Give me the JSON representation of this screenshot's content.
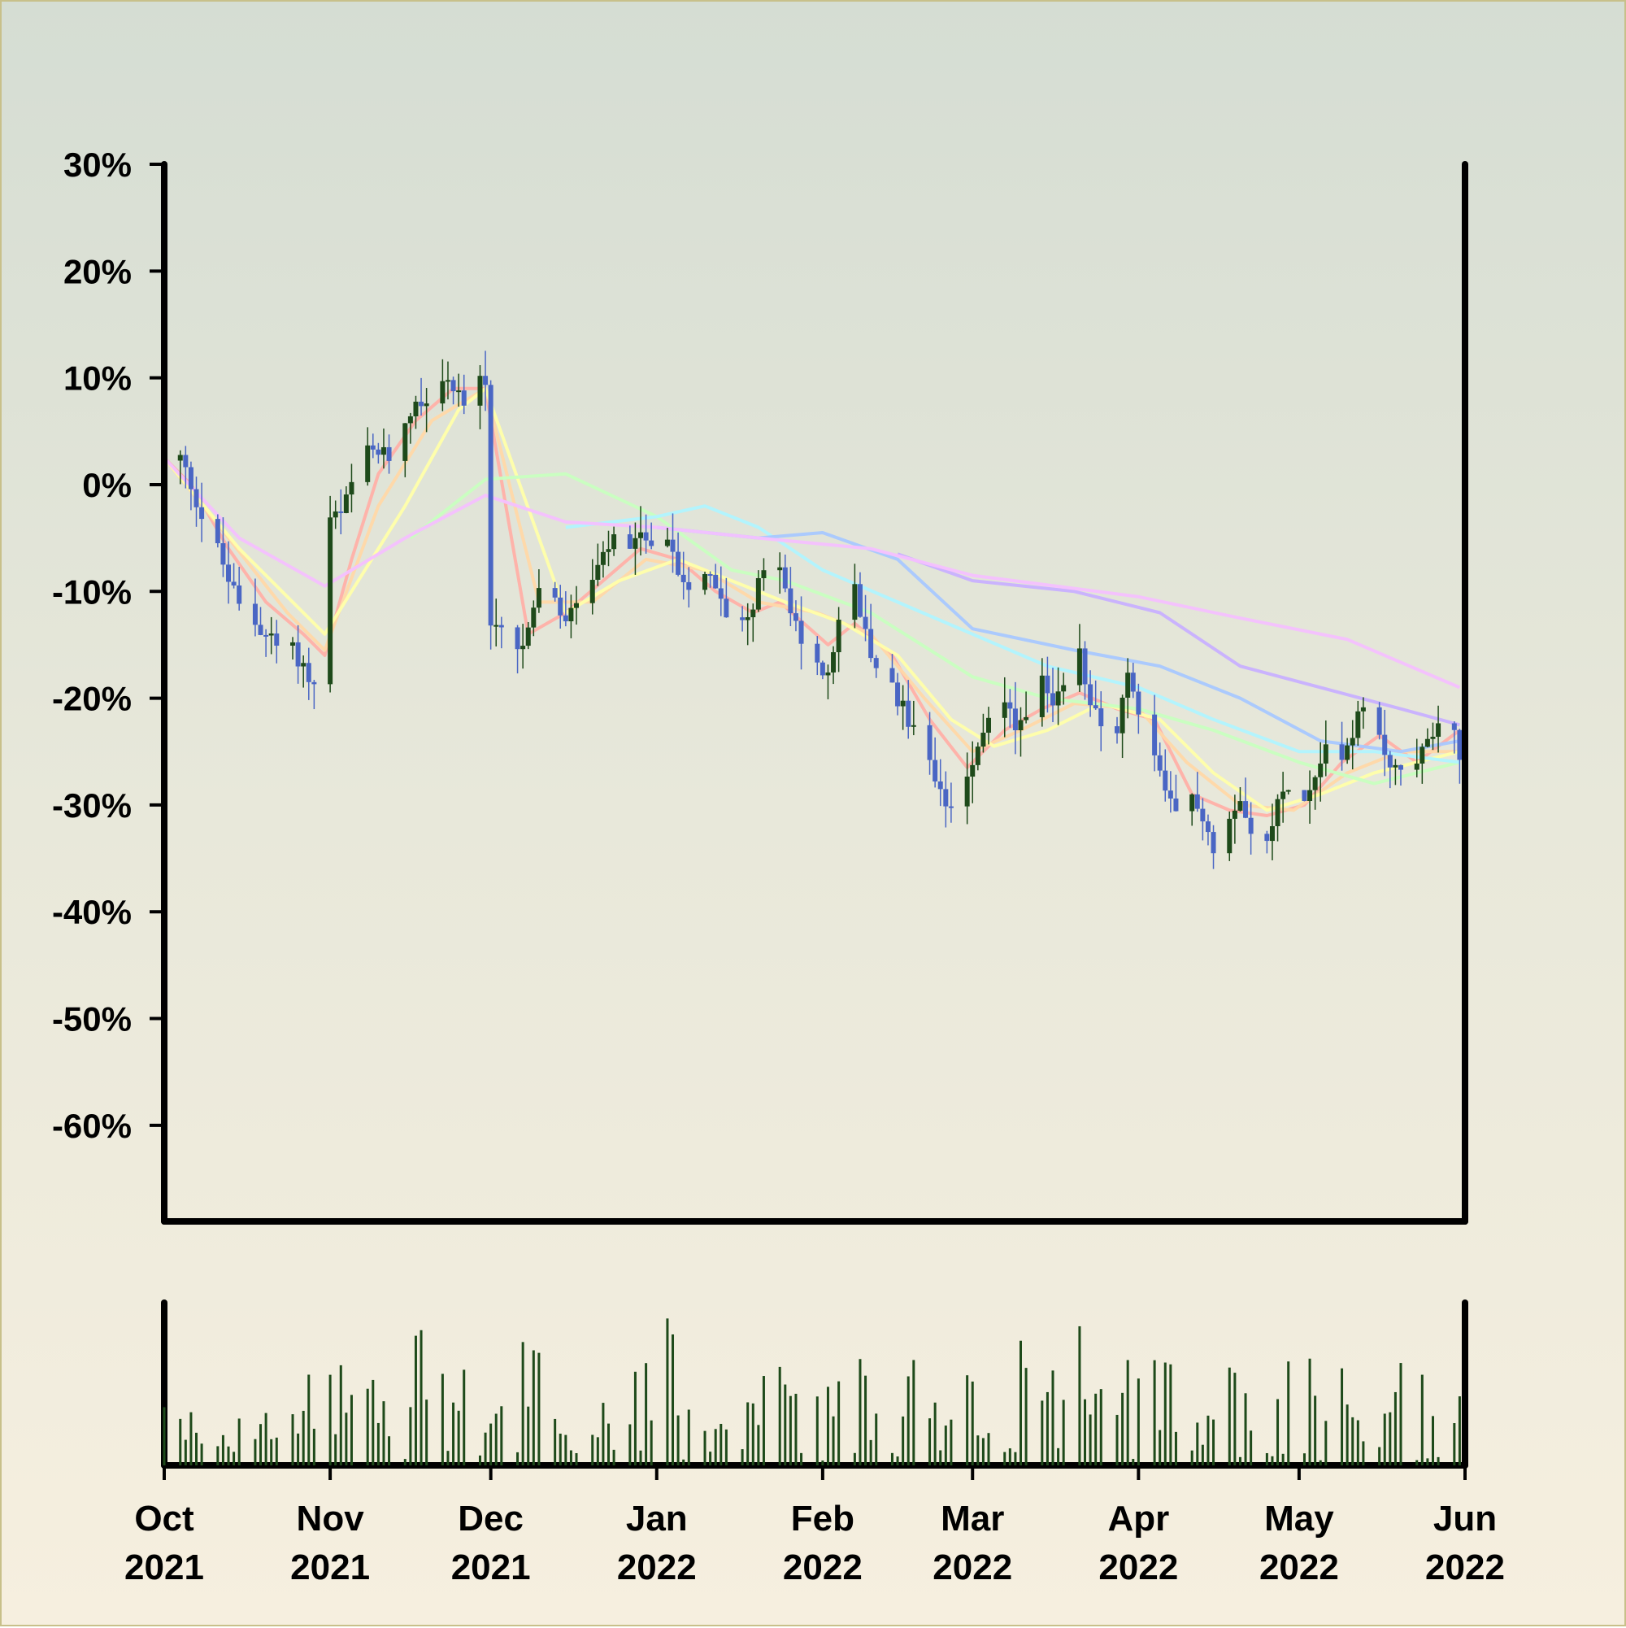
{
  "colors": {
    "up": "#1e4a1a",
    "down": "#4a66c4",
    "volume": "#1e4a1a",
    "axis": "#000000"
  },
  "chart_data": {
    "type": "candlestick",
    "title": "",
    "xlabel": "",
    "ylabel": "",
    "grid": false,
    "legend": "none",
    "y_range": [
      -69,
      30
    ],
    "y_ticks": [
      30,
      20,
      10,
      0,
      -10,
      -20,
      -30,
      -40,
      -50,
      -60
    ],
    "y_tick_labels": [
      "30%",
      "20%",
      "10%",
      "0%",
      "-10%",
      "-20%",
      "-30%",
      "-40%",
      "-50%",
      "-60%"
    ],
    "x_range": [
      "2021-10-01",
      "2022-06-01"
    ],
    "x_ticks": [
      {
        "date": "2021-10-01",
        "label": [
          "Oct",
          "2021"
        ]
      },
      {
        "date": "2021-11-01",
        "label": [
          "Nov",
          "2021"
        ]
      },
      {
        "date": "2021-12-01",
        "label": [
          "Dec",
          "2021"
        ]
      },
      {
        "date": "2022-01-01",
        "label": [
          "Jan",
          "2022"
        ]
      },
      {
        "date": "2022-02-01",
        "label": [
          "Feb",
          "2022"
        ]
      },
      {
        "date": "2022-03-01",
        "label": [
          "Mar",
          "2022"
        ]
      },
      {
        "date": "2022-04-01",
        "label": [
          "Apr",
          "2022"
        ]
      },
      {
        "date": "2022-05-01",
        "label": [
          "May",
          "2022"
        ]
      },
      {
        "date": "2022-06-01",
        "label": [
          "Jun",
          "2022"
        ]
      }
    ],
    "close_path": [
      [
        "2021-10-01",
        2
      ],
      [
        "2021-10-04",
        2.5
      ],
      [
        "2021-10-06",
        0
      ],
      [
        "2021-10-08",
        -3
      ],
      [
        "2021-10-11",
        -6
      ],
      [
        "2021-10-13",
        -9
      ],
      [
        "2021-10-15",
        -11
      ],
      [
        "2021-10-18",
        -13
      ],
      [
        "2021-10-20",
        -14
      ],
      [
        "2021-10-22",
        -15
      ],
      [
        "2021-10-25",
        -15.5
      ],
      [
        "2021-10-27",
        -17
      ],
      [
        "2021-10-29",
        -19
      ],
      [
        "2021-10-31",
        -18
      ],
      [
        "2021-11-01",
        -3
      ],
      [
        "2021-11-03",
        -3
      ],
      [
        "2021-11-05",
        0
      ],
      [
        "2021-11-08",
        3
      ],
      [
        "2021-11-10",
        3
      ],
      [
        "2021-11-12",
        2.5
      ],
      [
        "2021-11-15",
        6
      ],
      [
        "2021-11-17",
        8
      ],
      [
        "2021-11-19",
        8
      ],
      [
        "2021-11-22",
        10
      ],
      [
        "2021-11-24",
        9.5
      ],
      [
        "2021-11-26",
        7.5
      ],
      [
        "2021-11-29",
        10
      ],
      [
        "2021-11-30",
        9.5
      ],
      [
        "2021-12-01",
        -13
      ],
      [
        "2021-12-03",
        -14
      ],
      [
        "2021-12-06",
        -15.5
      ],
      [
        "2021-12-08",
        -14
      ],
      [
        "2021-12-10",
        -10
      ],
      [
        "2021-12-13",
        -11
      ],
      [
        "2021-12-15",
        -13
      ],
      [
        "2021-12-17",
        -11
      ],
      [
        "2021-12-20",
        -9
      ],
      [
        "2021-12-22",
        -7
      ],
      [
        "2021-12-24",
        -5
      ],
      [
        "2021-12-27",
        -6
      ],
      [
        "2021-12-29",
        -5
      ],
      [
        "2022-01-03",
        -5
      ],
      [
        "2022-01-05",
        -8
      ],
      [
        "2022-01-07",
        -10
      ],
      [
        "2022-01-10",
        -8
      ],
      [
        "2022-01-12",
        -10
      ],
      [
        "2022-01-14",
        -12
      ],
      [
        "2022-01-17",
        -12.5
      ],
      [
        "2022-01-19",
        -11
      ],
      [
        "2022-01-21",
        -8
      ],
      [
        "2022-01-24",
        -7
      ],
      [
        "2022-01-26",
        -12
      ],
      [
        "2022-01-28",
        -15
      ],
      [
        "2022-01-31",
        -17
      ],
      [
        "2022-02-02",
        -18
      ],
      [
        "2022-02-04",
        -13
      ],
      [
        "2022-02-07",
        -10
      ],
      [
        "2022-02-09",
        -14
      ],
      [
        "2022-02-11",
        -17
      ],
      [
        "2022-02-14",
        -19
      ],
      [
        "2022-02-16",
        -21
      ],
      [
        "2022-02-18",
        -23
      ],
      [
        "2022-02-21",
        -26
      ],
      [
        "2022-02-23",
        -29
      ],
      [
        "2022-02-25",
        -30
      ],
      [
        "2022-02-28",
        -27
      ],
      [
        "2022-03-02",
        -24
      ],
      [
        "2022-03-04",
        -22
      ],
      [
        "2022-03-07",
        -20
      ],
      [
        "2022-03-09",
        -23
      ],
      [
        "2022-03-11",
        -21
      ],
      [
        "2022-03-14",
        -18.5
      ],
      [
        "2022-03-16",
        -21
      ],
      [
        "2022-03-18",
        -19
      ],
      [
        "2022-03-21",
        -16
      ],
      [
        "2022-03-23",
        -20
      ],
      [
        "2022-03-25",
        -22
      ],
      [
        "2022-03-28",
        -23
      ],
      [
        "2022-03-30",
        -18
      ],
      [
        "2022-04-01",
        -22
      ],
      [
        "2022-04-04",
        -25
      ],
      [
        "2022-04-06",
        -29
      ],
      [
        "2022-04-08",
        -31
      ],
      [
        "2022-04-11",
        -29
      ],
      [
        "2022-04-13",
        -31
      ],
      [
        "2022-04-15",
        -34
      ],
      [
        "2022-04-18",
        -31
      ],
      [
        "2022-04-20",
        -29
      ],
      [
        "2022-04-22",
        -32
      ],
      [
        "2022-04-25",
        -34
      ],
      [
        "2022-04-27",
        -30
      ],
      [
        "2022-04-29",
        -28
      ],
      [
        "2022-05-02",
        -30
      ],
      [
        "2022-05-04",
        -27
      ],
      [
        "2022-05-06",
        -24
      ],
      [
        "2022-05-09",
        -26
      ],
      [
        "2022-05-11",
        -23
      ],
      [
        "2022-05-13",
        -21
      ],
      [
        "2022-05-16",
        -24
      ],
      [
        "2022-05-18",
        -26
      ],
      [
        "2022-05-20",
        -27
      ],
      [
        "2022-05-23",
        -26
      ],
      [
        "2022-05-25",
        -24
      ],
      [
        "2022-05-27",
        -22
      ],
      [
        "2022-05-30",
        -23
      ],
      [
        "2022-05-31",
        -25
      ]
    ],
    "moving_averages": [
      {
        "color": "#ffb0a8",
        "values": [
          [
            "2021-10-01",
            2.5
          ],
          [
            "2021-10-06",
            0
          ],
          [
            "2021-10-13",
            -6
          ],
          [
            "2021-10-20",
            -11
          ],
          [
            "2021-10-27",
            -14
          ],
          [
            "2021-10-31",
            -16
          ],
          [
            "2021-11-05",
            -7
          ],
          [
            "2021-11-10",
            1
          ],
          [
            "2021-11-17",
            6
          ],
          [
            "2021-11-24",
            9
          ],
          [
            "2021-11-30",
            9
          ],
          [
            "2021-12-08",
            -14
          ],
          [
            "2021-12-15",
            -12
          ],
          [
            "2021-12-22",
            -9
          ],
          [
            "2021-12-29",
            -6
          ],
          [
            "2022-01-05",
            -7
          ],
          [
            "2022-01-12",
            -10
          ],
          [
            "2022-01-19",
            -12
          ],
          [
            "2022-01-24",
            -11
          ],
          [
            "2022-02-02",
            -15
          ],
          [
            "2022-02-07",
            -13
          ],
          [
            "2022-02-14",
            -16
          ],
          [
            "2022-02-21",
            -22
          ],
          [
            "2022-02-28",
            -26.5
          ],
          [
            "2022-03-07",
            -23
          ],
          [
            "2022-03-14",
            -21
          ],
          [
            "2022-03-21",
            -19.5
          ],
          [
            "2022-03-28",
            -21
          ],
          [
            "2022-04-04",
            -22
          ],
          [
            "2022-04-11",
            -29
          ],
          [
            "2022-04-18",
            -30.5
          ],
          [
            "2022-04-25",
            -31
          ],
          [
            "2022-05-02",
            -30
          ],
          [
            "2022-05-09",
            -26
          ],
          [
            "2022-05-16",
            -23.5
          ],
          [
            "2022-05-23",
            -26
          ],
          [
            "2022-05-31",
            -23
          ]
        ]
      },
      {
        "color": "#ffd8a8",
        "values": [
          [
            "2021-10-01",
            2.5
          ],
          [
            "2021-10-13",
            -5
          ],
          [
            "2021-10-24",
            -12
          ],
          [
            "2021-10-31",
            -15.5
          ],
          [
            "2021-11-10",
            -2
          ],
          [
            "2021-11-20",
            6
          ],
          [
            "2021-11-30",
            9
          ],
          [
            "2021-12-10",
            -11
          ],
          [
            "2021-12-20",
            -11
          ],
          [
            "2021-12-30",
            -7
          ],
          [
            "2022-01-10",
            -8
          ],
          [
            "2022-01-20",
            -11
          ],
          [
            "2022-01-31",
            -12
          ],
          [
            "2022-02-10",
            -14
          ],
          [
            "2022-02-20",
            -20
          ],
          [
            "2022-03-01",
            -25
          ],
          [
            "2022-03-10",
            -23
          ],
          [
            "2022-03-20",
            -20.5
          ],
          [
            "2022-04-01",
            -21
          ],
          [
            "2022-04-10",
            -26
          ],
          [
            "2022-04-20",
            -30
          ],
          [
            "2022-04-30",
            -30.5
          ],
          [
            "2022-05-10",
            -27
          ],
          [
            "2022-05-20",
            -25
          ],
          [
            "2022-05-31",
            -25
          ]
        ]
      },
      {
        "color": "#ffffaa",
        "values": [
          [
            "2021-10-01",
            2.5
          ],
          [
            "2021-10-15",
            -6
          ],
          [
            "2021-10-31",
            -14
          ],
          [
            "2021-11-15",
            -2
          ],
          [
            "2021-11-25",
            7
          ],
          [
            "2021-11-30",
            9
          ],
          [
            "2021-12-05",
            2
          ],
          [
            "2021-12-15",
            -12
          ],
          [
            "2021-12-25",
            -9
          ],
          [
            "2022-01-05",
            -7
          ],
          [
            "2022-01-15",
            -9
          ],
          [
            "2022-01-25",
            -11
          ],
          [
            "2022-02-05",
            -13
          ],
          [
            "2022-02-15",
            -16
          ],
          [
            "2022-02-25",
            -22
          ],
          [
            "2022-03-05",
            -24.5
          ],
          [
            "2022-03-15",
            -23
          ],
          [
            "2022-03-25",
            -20.5
          ],
          [
            "2022-04-05",
            -22
          ],
          [
            "2022-04-15",
            -27
          ],
          [
            "2022-04-25",
            -30.5
          ],
          [
            "2022-05-05",
            -29
          ],
          [
            "2022-05-15",
            -27
          ],
          [
            "2022-05-31",
            -25
          ]
        ]
      },
      {
        "color": "#c8ffc0",
        "values": [
          [
            "2021-11-16",
            -5
          ],
          [
            "2021-11-30",
            0.5
          ],
          [
            "2021-12-15",
            1
          ],
          [
            "2022-01-01",
            -3
          ],
          [
            "2022-01-15",
            -8
          ],
          [
            "2022-01-25",
            -9
          ],
          [
            "2022-02-10",
            -12
          ],
          [
            "2022-03-01",
            -18
          ],
          [
            "2022-03-15",
            -20
          ],
          [
            "2022-04-01",
            -21
          ],
          [
            "2022-04-15",
            -23
          ],
          [
            "2022-05-01",
            -26
          ],
          [
            "2022-05-15",
            -28
          ],
          [
            "2022-05-31",
            -26
          ]
        ]
      },
      {
        "color": "#b0f4ff",
        "values": [
          [
            "2021-12-15",
            -4
          ],
          [
            "2022-01-01",
            -3
          ],
          [
            "2022-01-10",
            -2
          ],
          [
            "2022-01-20",
            -4
          ],
          [
            "2022-02-01",
            -8
          ],
          [
            "2022-02-15",
            -11
          ],
          [
            "2022-03-01",
            -14
          ],
          [
            "2022-03-15",
            -17
          ],
          [
            "2022-04-01",
            -19
          ],
          [
            "2022-04-15",
            -22
          ],
          [
            "2022-05-01",
            -25
          ],
          [
            "2022-05-15",
            -25
          ],
          [
            "2022-05-31",
            -26
          ]
        ]
      },
      {
        "color": "#a8c8ff",
        "values": [
          [
            "2022-01-01",
            -4
          ],
          [
            "2022-01-20",
            -5
          ],
          [
            "2022-02-01",
            -4.5
          ],
          [
            "2022-02-15",
            -7
          ],
          [
            "2022-03-01",
            -13.5
          ],
          [
            "2022-03-20",
            -15.5
          ],
          [
            "2022-04-05",
            -17
          ],
          [
            "2022-04-20",
            -20
          ],
          [
            "2022-05-05",
            -24
          ],
          [
            "2022-05-20",
            -25
          ],
          [
            "2022-05-31",
            -24
          ]
        ]
      },
      {
        "color": "#c8b0ff",
        "values": [
          [
            "2022-02-15",
            -6.5
          ],
          [
            "2022-03-01",
            -9
          ],
          [
            "2022-03-20",
            -10
          ],
          [
            "2022-04-05",
            -12
          ],
          [
            "2022-04-20",
            -17
          ],
          [
            "2022-05-05",
            -19
          ],
          [
            "2022-05-20",
            -21
          ],
          [
            "2022-05-31",
            -22.5
          ]
        ]
      },
      {
        "color": "#f4c0ff",
        "values": [
          [
            "2021-10-01",
            2.5
          ],
          [
            "2021-10-15",
            -5
          ],
          [
            "2021-10-31",
            -9.5
          ],
          [
            "2021-11-15",
            -5
          ],
          [
            "2021-11-30",
            -1
          ],
          [
            "2021-12-15",
            -3.5
          ],
          [
            "2022-01-01",
            -4
          ],
          [
            "2022-01-20",
            -5
          ],
          [
            "2022-02-10",
            -6
          ],
          [
            "2022-03-01",
            -8.5
          ],
          [
            "2022-04-01",
            -10.5
          ],
          [
            "2022-04-20",
            -12.5
          ],
          [
            "2022-05-10",
            -14.5
          ],
          [
            "2022-05-31",
            -19
          ]
        ]
      }
    ],
    "volume_profile": [
      0.32,
      0.2,
      0.45,
      0.3,
      0.55,
      0.6,
      0.4,
      0.75,
      0.55,
      0.45,
      0.7,
      0.5,
      0.35,
      0.6,
      0.85,
      0.5,
      0.4,
      0.65,
      0.95,
      0.6,
      0.45,
      0.8,
      0.55,
      0.3,
      0.7,
      0.9,
      0.5,
      0.85,
      0.6,
      0.35,
      0.75,
      0.45,
      0.9,
      0.55,
      0.3,
      0.65,
      0.5
    ]
  }
}
